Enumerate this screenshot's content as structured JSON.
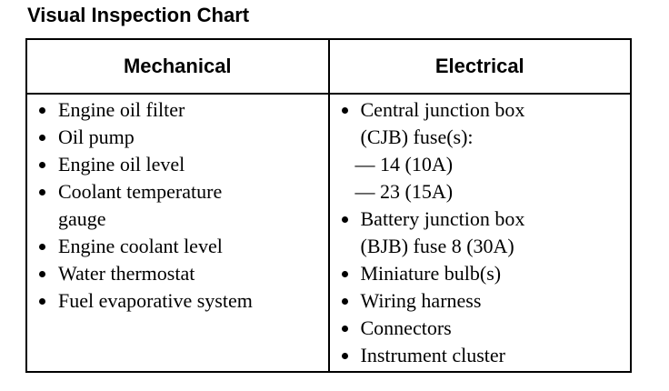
{
  "title": "Visual Inspection Chart",
  "table": {
    "headers": [
      "Mechanical",
      "Electrical"
    ],
    "columns": [
      [
        [
          "Engine oil filter"
        ],
        [
          "Oil pump"
        ],
        [
          "Engine oil level"
        ],
        [
          "Coolant temperature",
          "gauge"
        ],
        [
          "Engine coolant level"
        ],
        [
          "Water thermostat"
        ],
        [
          "Fuel evaporative system"
        ]
      ],
      [
        [
          "Central junction box",
          "(CJB) fuse(s):",
          "— 14 (10A)",
          "— 23 (15A)"
        ],
        [
          "Battery junction box",
          "(BJB) fuse 8 (30A)"
        ],
        [
          "Miniature bulb(s)"
        ],
        [
          "Wiring harness"
        ],
        [
          "Connectors"
        ],
        [
          "Instrument cluster"
        ]
      ]
    ]
  }
}
